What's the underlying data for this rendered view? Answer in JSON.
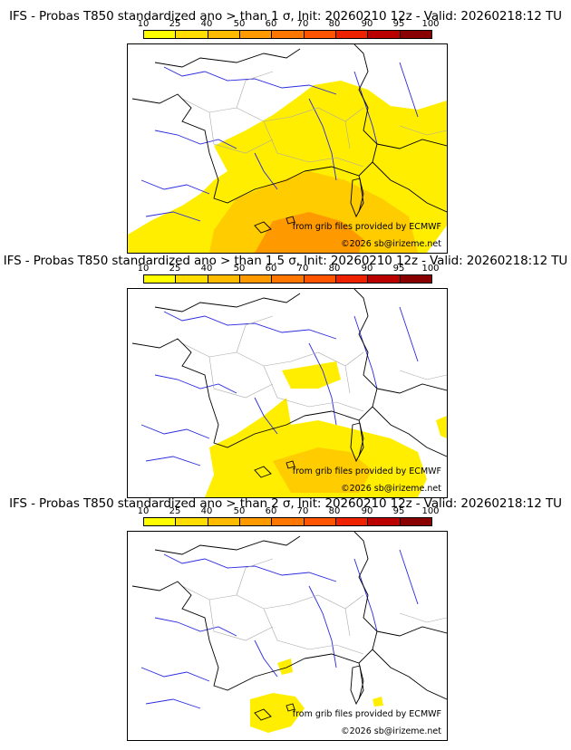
{
  "colors": {
    "scale": [
      "#ffff00",
      "#ffdd00",
      "#ffbb00",
      "#ff9900",
      "#ff7700",
      "#ff5500",
      "#ee2200",
      "#bb0000",
      "#880000",
      "#550000"
    ],
    "sea": "#ffffff",
    "border": "#000000",
    "river": "#2a2ae0",
    "region": "#a8a8a8",
    "prob_low": "#ffee00",
    "prob_mid": "#ffcc00",
    "prob_high": "#ff9900"
  },
  "scale_ticks": [
    "10",
    "25",
    "40",
    "50",
    "60",
    "70",
    "80",
    "90",
    "95",
    "100"
  ],
  "credits": {
    "source": "from grib files provided by ECMWF",
    "copyright": "©2026 sb@irizeme.net"
  },
  "panels": [
    {
      "title": "IFS - Probas T850  standardized ano > than 1 σ, Init: 20260210 12z - Valid: 20260218:12 TU",
      "threshold": "1 σ"
    },
    {
      "title": "IFS - Probas T850  standardized ano > than 1.5 σ, Init: 20260210 12z - Valid: 20260218:12 TU",
      "threshold": "1.5 σ"
    },
    {
      "title": "IFS - Probas T850  standardized ano > than 2 σ, Init: 20260210 12z - Valid: 20260218:12 TU",
      "threshold": "2 σ"
    }
  ]
}
